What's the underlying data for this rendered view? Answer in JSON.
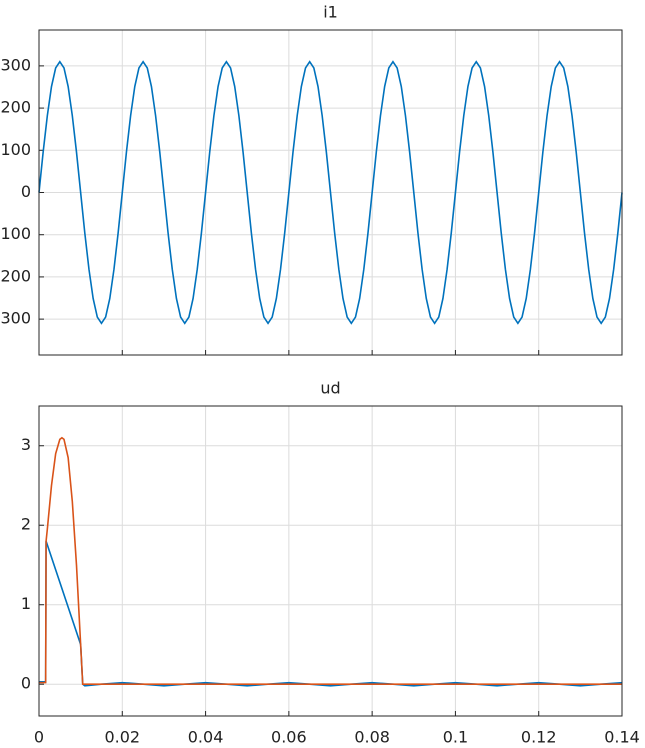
{
  "chart_data": [
    {
      "type": "line",
      "title": "i1",
      "x": [
        0,
        0.001,
        0.002,
        0.003,
        0.004,
        0.005,
        0.006,
        0.007,
        0.008,
        0.009,
        0.01,
        0.011,
        0.012,
        0.013,
        0.014,
        0.015,
        0.016,
        0.017,
        0.018,
        0.019,
        0.02,
        0.021,
        0.022,
        0.023,
        0.024,
        0.025,
        0.026,
        0.027,
        0.028,
        0.029,
        0.03,
        0.031,
        0.032,
        0.033,
        0.034,
        0.035,
        0.036,
        0.037,
        0.038,
        0.039,
        0.04,
        0.041,
        0.042,
        0.043,
        0.044,
        0.045,
        0.046,
        0.047,
        0.048,
        0.049,
        0.05,
        0.051,
        0.052,
        0.053,
        0.054,
        0.055,
        0.056,
        0.057,
        0.058,
        0.059,
        0.06,
        0.061,
        0.062,
        0.063,
        0.064,
        0.065,
        0.066,
        0.067,
        0.068,
        0.069,
        0.07,
        0.071,
        0.072,
        0.073,
        0.074,
        0.075,
        0.076,
        0.077,
        0.078,
        0.079,
        0.08,
        0.081,
        0.082,
        0.083,
        0.084,
        0.085,
        0.086,
        0.087,
        0.088,
        0.089,
        0.09,
        0.091,
        0.092,
        0.093,
        0.094,
        0.095,
        0.096,
        0.097,
        0.098,
        0.099,
        0.1,
        0.101,
        0.102,
        0.103,
        0.104,
        0.105,
        0.106,
        0.107,
        0.108,
        0.109,
        0.11,
        0.111,
        0.112,
        0.113,
        0.114,
        0.115,
        0.116,
        0.117,
        0.118,
        0.119,
        0.12,
        0.121,
        0.122,
        0.123,
        0.124,
        0.125,
        0.126,
        0.127,
        0.128,
        0.129,
        0.13,
        0.131,
        0.132,
        0.133,
        0.134,
        0.135,
        0.136,
        0.137,
        0.138,
        0.139,
        0.14
      ],
      "series": [
        {
          "color": "#0072bd",
          "values": [
            0,
            96,
            182,
            251,
            295,
            310,
            295,
            251,
            182,
            96,
            0,
            -96,
            -182,
            -251,
            -295,
            -310,
            -295,
            -251,
            -182,
            -96,
            0,
            96,
            182,
            251,
            295,
            310,
            295,
            251,
            182,
            96,
            0,
            -96,
            -182,
            -251,
            -295,
            -310,
            -295,
            -251,
            -182,
            -96,
            0,
            96,
            182,
            251,
            295,
            310,
            295,
            251,
            182,
            96,
            0,
            -96,
            -182,
            -251,
            -295,
            -310,
            -295,
            -251,
            -182,
            -96,
            0,
            96,
            182,
            251,
            295,
            310,
            295,
            251,
            182,
            96,
            0,
            -96,
            -182,
            -251,
            -295,
            -310,
            -295,
            -251,
            -182,
            -96,
            0,
            96,
            182,
            251,
            295,
            310,
            295,
            251,
            182,
            96,
            0,
            -96,
            -182,
            -251,
            -295,
            -310,
            -295,
            -251,
            -182,
            -96,
            0,
            96,
            182,
            251,
            295,
            310,
            295,
            251,
            182,
            96,
            0,
            -96,
            -182,
            -251,
            -295,
            -310,
            -295,
            -251,
            -182,
            -96,
            0,
            96,
            182,
            251,
            295,
            310,
            295,
            251,
            182,
            96,
            0,
            -96,
            -182,
            -251,
            -295,
            -310,
            -295,
            -251,
            -182,
            -96,
            0
          ]
        }
      ],
      "xlim": [
        0,
        0.14
      ],
      "ylim": [
        -385,
        385
      ],
      "yticks": [
        {
          "value": -300,
          "label": "300"
        },
        {
          "value": -200,
          "label": "200"
        },
        {
          "value": -100,
          "label": "100"
        },
        0,
        100,
        200,
        300
      ],
      "grid": true
    },
    {
      "type": "line",
      "title": "ud",
      "series": [
        {
          "color": "#0072bd",
          "x": [
            0,
            0.0016,
            0.0017,
            0.01,
            0.0105,
            0.011,
            0.015,
            0.02,
            0.025,
            0.03,
            0.035,
            0.04,
            0.045,
            0.05,
            0.055,
            0.06,
            0.065,
            0.07,
            0.075,
            0.08,
            0.085,
            0.09,
            0.095,
            0.1,
            0.105,
            0.11,
            0.115,
            0.12,
            0.125,
            0.13,
            0.135,
            0.14
          ],
          "values": [
            0.03,
            0.03,
            1.8,
            0.5,
            0,
            -0.02,
            0,
            0.02,
            0,
            -0.02,
            0,
            0.02,
            0,
            -0.02,
            0,
            0.02,
            0,
            -0.02,
            0,
            0.02,
            0,
            -0.02,
            0,
            0.02,
            0,
            -0.02,
            0,
            0.02,
            0,
            -0.02,
            0,
            0.02
          ]
        },
        {
          "color": "#d95319",
          "x": [
            0,
            0.0016,
            0.0017,
            0.002,
            0.003,
            0.004,
            0.005,
            0.0055,
            0.006,
            0.007,
            0.008,
            0.009,
            0.01,
            0.0105,
            0.011,
            0.14
          ],
          "values": [
            0.02,
            0.02,
            1.8,
            1.95,
            2.5,
            2.9,
            3.08,
            3.1,
            3.08,
            2.85,
            2.3,
            1.5,
            0.5,
            0,
            0,
            0
          ]
        }
      ],
      "xlim": [
        0,
        0.14
      ],
      "xticks": [
        0,
        0.02,
        0.04,
        0.06,
        0.08,
        0.1,
        0.12,
        0.14
      ],
      "ylim": [
        -0.4,
        3.5
      ],
      "yticks": [
        0,
        1,
        2,
        3
      ],
      "grid": true
    }
  ]
}
